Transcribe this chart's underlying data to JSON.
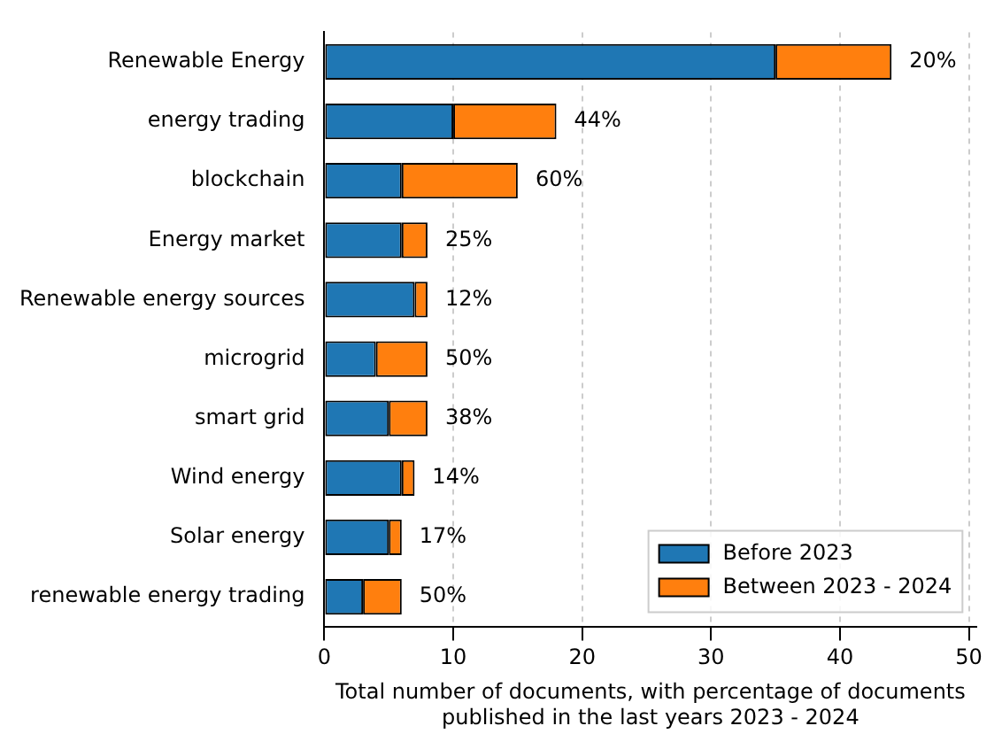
{
  "chart_data": {
    "type": "bar",
    "orientation": "horizontal",
    "stacked": true,
    "categories": [
      "Renewable Energy",
      "energy trading",
      "blockchain",
      "Energy market",
      "Renewable energy sources",
      "microgrid",
      "smart grid",
      "Wind energy",
      "Solar energy",
      "renewable energy trading"
    ],
    "series": [
      {
        "name": "Before 2023",
        "color": "#1f77b4",
        "values": [
          35,
          10,
          6,
          6,
          7,
          4,
          5,
          6,
          5,
          3
        ]
      },
      {
        "name": "Between 2023 - 2024",
        "color": "#ff7f0e",
        "values": [
          9,
          8,
          9,
          2,
          1,
          4,
          3,
          1,
          1,
          3
        ]
      }
    ],
    "annotations": [
      {
        "text": "20%",
        "x": 44,
        "y": "Renewable Energy"
      },
      {
        "text": "44%",
        "x": 18,
        "y": "energy trading"
      },
      {
        "text": "60%",
        "x": 15,
        "y": "blockchain"
      },
      {
        "text": "25%",
        "x": 8,
        "y": "Energy market"
      },
      {
        "text": "12%",
        "x": 8,
        "y": "Renewable energy sources"
      },
      {
        "text": "50%",
        "x": 8,
        "y": "microgrid"
      },
      {
        "text": "38%",
        "x": 8,
        "y": "smart grid"
      },
      {
        "text": "14%",
        "x": 7,
        "y": "Wind energy"
      },
      {
        "text": "17%",
        "x": 6,
        "y": "Solar energy"
      },
      {
        "text": "50%",
        "x": 6,
        "y": "renewable energy trading"
      }
    ],
    "xlabel": "Total number of documents, with percentage of documents\npublished in the last years 2023 - 2024",
    "xlim": [
      0,
      50.6
    ],
    "xticks": [
      0,
      10,
      20,
      30,
      40,
      50
    ],
    "grid": "x",
    "legend": "bottom right"
  }
}
